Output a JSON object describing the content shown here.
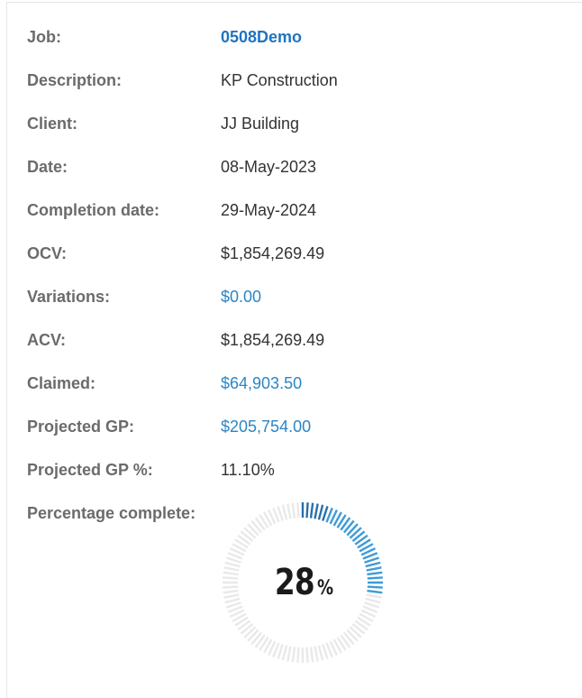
{
  "fields": {
    "job": {
      "label": "Job:",
      "value": "0508Demo"
    },
    "description": {
      "label": "Description:",
      "value": "KP Construction"
    },
    "client": {
      "label": "Client:",
      "value": "JJ Building"
    },
    "date": {
      "label": "Date:",
      "value": "08-May-2023"
    },
    "completion_date": {
      "label": "Completion date:",
      "value": "29-May-2024"
    },
    "ocv": {
      "label": "OCV:",
      "value": "$1,854,269.49"
    },
    "variations": {
      "label": "Variations:",
      "value": "$0.00"
    },
    "acv": {
      "label": "ACV:",
      "value": "$1,854,269.49"
    },
    "claimed": {
      "label": "Claimed:",
      "value": "$64,903.50"
    },
    "projected_gp": {
      "label": "Projected GP:",
      "value": "$205,754.00"
    },
    "projected_gp_pct": {
      "label": "Projected GP %:",
      "value": "11.10%"
    },
    "percentage_complete": {
      "label": "Percentage complete:"
    }
  },
  "gauge": {
    "percent": 28,
    "number": "28",
    "unit": "%",
    "colors": {
      "filled_dark": "#2a6fa8",
      "filled": "#3f9bd8",
      "empty": "#e9e9e9"
    }
  }
}
